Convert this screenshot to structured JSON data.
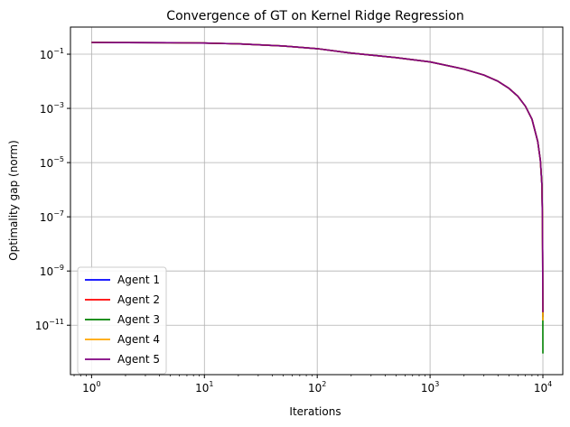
{
  "chart_data": {
    "type": "line",
    "title": "Convergence of GT on Kernel Ridge Regression",
    "xlabel": "Iterations",
    "ylabel": "Optimality gap (norm)",
    "xscale": "log",
    "yscale": "log",
    "xlim": [
      0.65,
      15000
    ],
    "ylim": [
      1.5e-13,
      1.0
    ],
    "grid": true,
    "legend_position": "lower-left",
    "x_ticks": [
      {
        "base": "10",
        "exp": "0",
        "value": 1
      },
      {
        "base": "10",
        "exp": "1",
        "value": 10
      },
      {
        "base": "10",
        "exp": "2",
        "value": 100
      },
      {
        "base": "10",
        "exp": "3",
        "value": 1000
      },
      {
        "base": "10",
        "exp": "4",
        "value": 10000
      }
    ],
    "y_ticks": [
      {
        "base": "10",
        "exp": "−1",
        "value": 0.1
      },
      {
        "base": "10",
        "exp": "−3",
        "value": 0.001
      },
      {
        "base": "10",
        "exp": "−5",
        "value": 1e-05
      },
      {
        "base": "10",
        "exp": "−7",
        "value": 1e-07
      },
      {
        "base": "10",
        "exp": "−9",
        "value": 1e-09
      },
      {
        "base": "10",
        "exp": "−11",
        "value": 1e-11
      }
    ],
    "x": [
      1,
      2,
      5,
      10,
      20,
      50,
      100,
      200,
      500,
      1000,
      2000,
      3000,
      4000,
      5000,
      6000,
      7000,
      8000,
      9000,
      9500,
      9800,
      9900,
      9950,
      9980,
      9999
    ],
    "series": [
      {
        "name": "Agent 1",
        "color": "#0000ff",
        "values": [
          0.27,
          0.268,
          0.264,
          0.258,
          0.24,
          0.2,
          0.16,
          0.11,
          0.075,
          0.052,
          0.028,
          0.017,
          0.01,
          0.0055,
          0.0028,
          0.0012,
          0.0004,
          6e-05,
          1.2e-05,
          1.5e-06,
          1e-07,
          5e-09,
          1e-10,
          2e-11
        ]
      },
      {
        "name": "Agent 2",
        "color": "#ff0000",
        "values": [
          0.27,
          0.268,
          0.264,
          0.258,
          0.24,
          0.2,
          0.16,
          0.11,
          0.075,
          0.052,
          0.028,
          0.017,
          0.01,
          0.0055,
          0.0028,
          0.0012,
          0.0004,
          6e-05,
          1.2e-05,
          1.5e-06,
          1e-07,
          5e-09,
          1e-10,
          2e-11
        ]
      },
      {
        "name": "Agent 3",
        "color": "#008000",
        "values": [
          0.27,
          0.268,
          0.264,
          0.258,
          0.24,
          0.2,
          0.16,
          0.11,
          0.075,
          0.052,
          0.028,
          0.017,
          0.01,
          0.0055,
          0.0028,
          0.0012,
          0.0004,
          6e-05,
          1.2e-05,
          1.5e-06,
          1e-07,
          5e-09,
          1e-10,
          9e-13
        ]
      },
      {
        "name": "Agent 4",
        "color": "#ffa500",
        "values": [
          0.27,
          0.268,
          0.264,
          0.258,
          0.24,
          0.2,
          0.16,
          0.11,
          0.075,
          0.052,
          0.028,
          0.017,
          0.01,
          0.0055,
          0.0028,
          0.0012,
          0.0004,
          6e-05,
          1.2e-05,
          1.5e-06,
          1e-07,
          5e-09,
          1e-10,
          1.5e-11
        ]
      },
      {
        "name": "Agent 5",
        "color": "#800080",
        "values": [
          0.27,
          0.268,
          0.264,
          0.258,
          0.24,
          0.2,
          0.16,
          0.11,
          0.075,
          0.052,
          0.028,
          0.017,
          0.01,
          0.0055,
          0.0028,
          0.0012,
          0.0004,
          6e-05,
          1.2e-05,
          1.5e-06,
          1e-07,
          5e-09,
          1e-10,
          3e-11
        ]
      }
    ]
  }
}
